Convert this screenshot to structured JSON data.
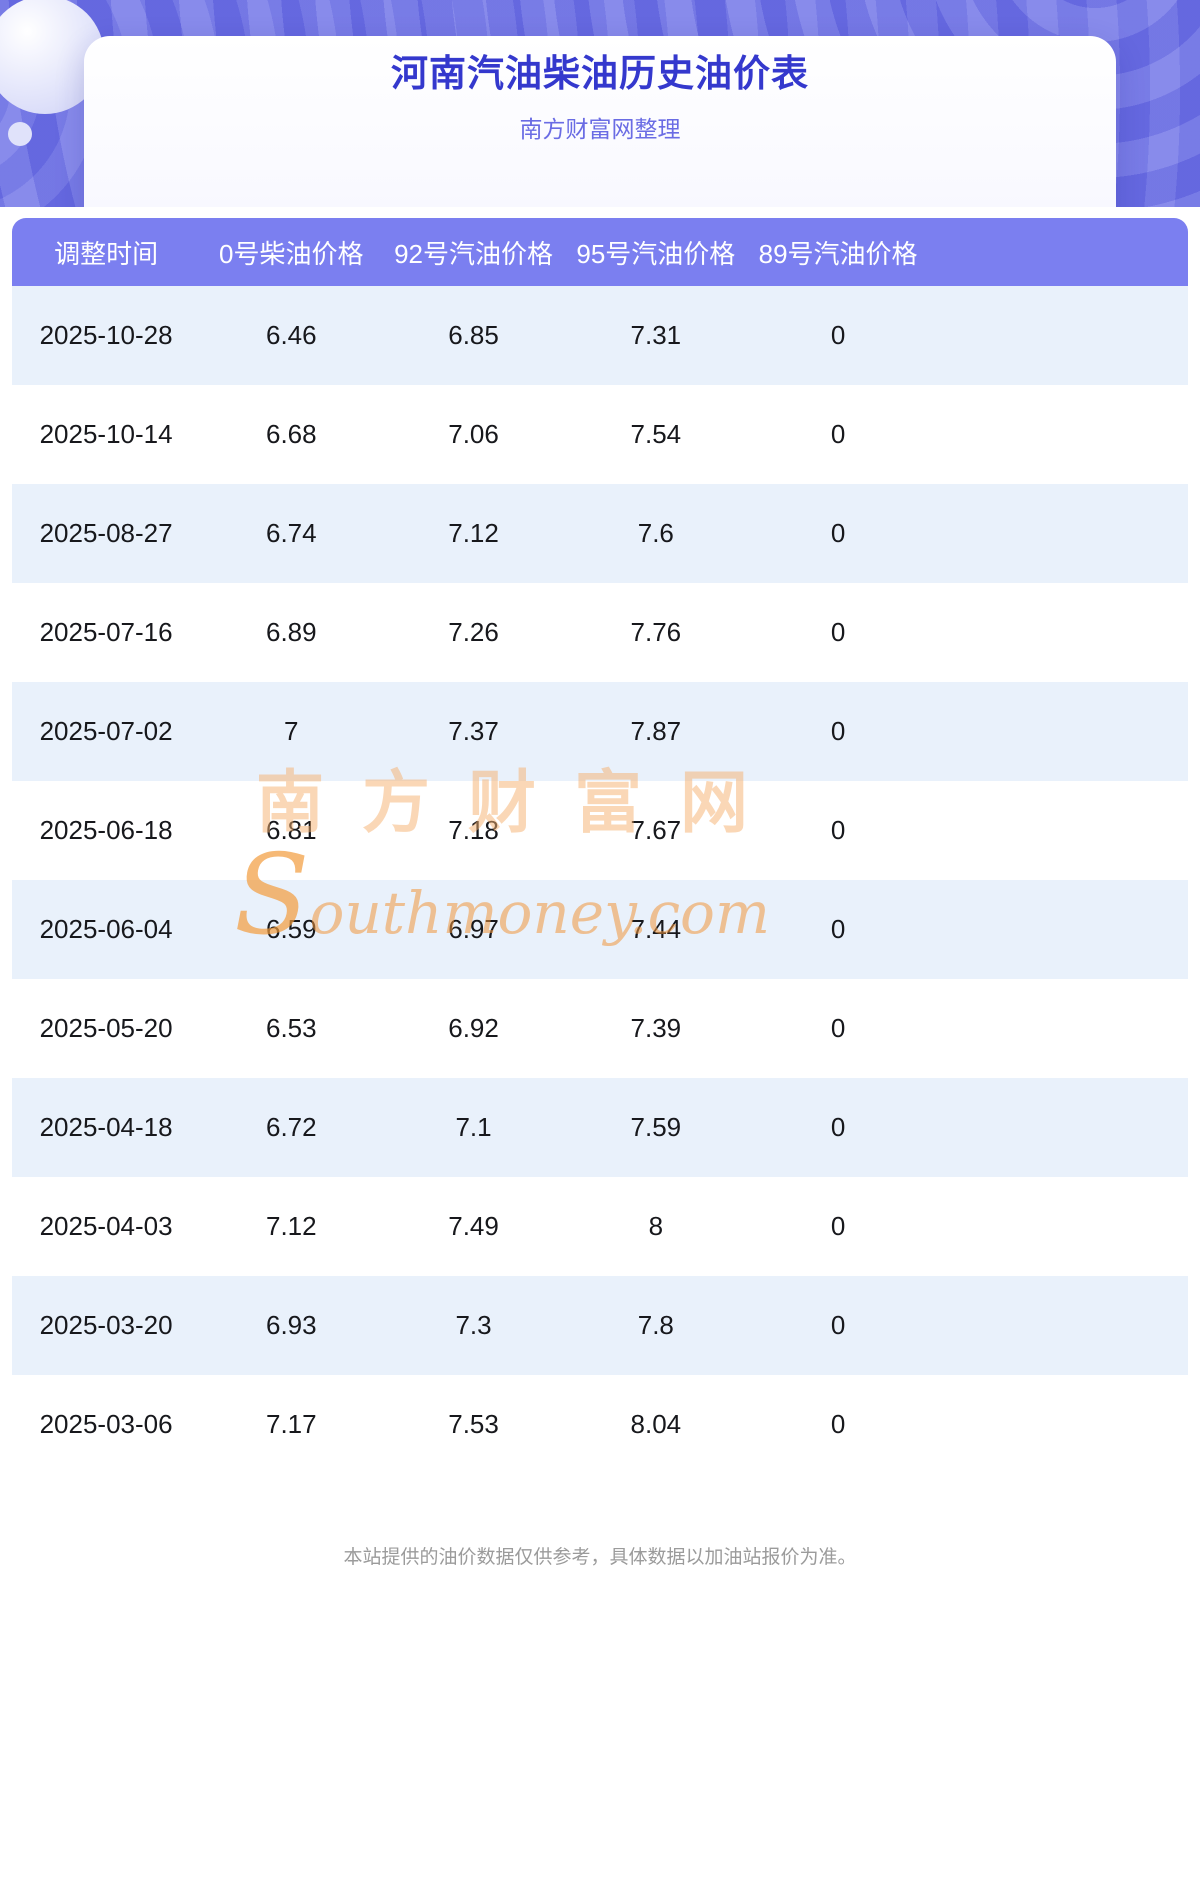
{
  "page": {
    "title": "河南汽油柴油历史油价表",
    "subtitle": "南方财富网整理",
    "footer_note": "本站提供的油价数据仅供参考，具体数据以加油站报价为准。"
  },
  "watermark": {
    "line1": "南方财富网",
    "line2": "Southmoney.com"
  },
  "colors": {
    "hero_bg": "#6e71e7",
    "table_header_bg": "#7b7ff0",
    "row_alt_bg": "#e9f1fb",
    "title_color": "#3438cd",
    "subtitle_color": "#6a6ce4",
    "text_color": "#17181c",
    "footer_color": "#9b9b9b"
  },
  "table": {
    "columns": [
      "调整时间",
      "0号柴油价格",
      "92号汽油价格",
      "95号汽油价格",
      "89号汽油价格"
    ],
    "rows": [
      [
        "2025-10-28",
        "6.46",
        "6.85",
        "7.31",
        "0"
      ],
      [
        "2025-10-14",
        "6.68",
        "7.06",
        "7.54",
        "0"
      ],
      [
        "2025-08-27",
        "6.74",
        "7.12",
        "7.6",
        "0"
      ],
      [
        "2025-07-16",
        "6.89",
        "7.26",
        "7.76",
        "0"
      ],
      [
        "2025-07-02",
        "7",
        "7.37",
        "7.87",
        "0"
      ],
      [
        "2025-06-18",
        "6.81",
        "7.18",
        "7.67",
        "0"
      ],
      [
        "2025-06-04",
        "6.59",
        "6.97",
        "7.44",
        "0"
      ],
      [
        "2025-05-20",
        "6.53",
        "6.92",
        "7.39",
        "0"
      ],
      [
        "2025-04-18",
        "6.72",
        "7.1",
        "7.59",
        "0"
      ],
      [
        "2025-04-03",
        "7.12",
        "7.49",
        "8",
        "0"
      ],
      [
        "2025-03-20",
        "6.93",
        "7.3",
        "7.8",
        "0"
      ],
      [
        "2025-03-06",
        "7.17",
        "7.53",
        "8.04",
        "0"
      ]
    ]
  }
}
